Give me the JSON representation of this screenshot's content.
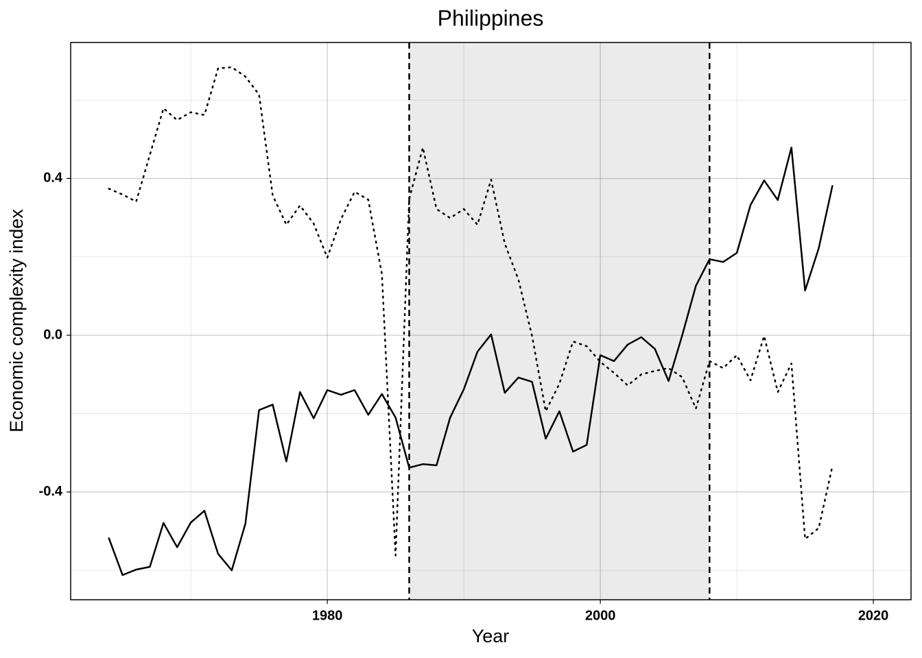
{
  "chart_data": {
    "type": "line",
    "title": "Philippines",
    "xlabel": "Year",
    "ylabel": "Economic complexity index",
    "x": [
      1964,
      1965,
      1966,
      1967,
      1968,
      1969,
      1970,
      1971,
      1972,
      1973,
      1974,
      1975,
      1976,
      1977,
      1978,
      1979,
      1980,
      1981,
      1982,
      1983,
      1984,
      1985,
      1986,
      1987,
      1988,
      1989,
      1990,
      1991,
      1992,
      1993,
      1994,
      1995,
      1996,
      1997,
      1998,
      1999,
      2000,
      2001,
      2002,
      2003,
      2004,
      2005,
      2006,
      2007,
      2008,
      2009,
      2010,
      2011,
      2012,
      2013,
      2014,
      2015,
      2016,
      2017
    ],
    "series": [
      {
        "color": "#000000",
        "style": "solid",
        "values": [
          -0.518,
          -0.612,
          -0.598,
          -0.591,
          -0.479,
          -0.541,
          -0.478,
          -0.448,
          -0.558,
          -0.6,
          -0.481,
          -0.191,
          -0.177,
          -0.322,
          -0.145,
          -0.212,
          -0.14,
          -0.152,
          -0.14,
          -0.203,
          -0.15,
          -0.21,
          -0.338,
          -0.329,
          -0.332,
          -0.21,
          -0.138,
          -0.042,
          0.002,
          -0.147,
          -0.108,
          -0.119,
          -0.264,
          -0.194,
          -0.297,
          -0.28,
          -0.051,
          -0.066,
          -0.024,
          -0.005,
          -0.035,
          -0.117,
          0.0,
          0.126,
          0.194,
          0.187,
          0.21,
          0.332,
          0.395,
          0.345,
          0.479,
          0.114,
          0.222,
          0.381
        ]
      },
      {
        "color": "#000000",
        "style": "dotted",
        "values": [
          0.374,
          0.359,
          0.341,
          0.46,
          0.579,
          0.549,
          0.569,
          0.562,
          0.681,
          0.684,
          0.66,
          0.614,
          0.357,
          0.282,
          0.331,
          0.285,
          0.198,
          0.296,
          0.366,
          0.346,
          0.156,
          -0.562,
          0.348,
          0.479,
          0.322,
          0.299,
          0.322,
          0.282,
          0.397,
          0.234,
          0.142,
          -0.002,
          -0.194,
          -0.124,
          -0.016,
          -0.028,
          -0.068,
          -0.096,
          -0.128,
          -0.1,
          -0.091,
          -0.084,
          -0.107,
          -0.187,
          -0.066,
          -0.084,
          -0.051,
          -0.115,
          -0.002,
          -0.145,
          -0.072,
          -0.52,
          -0.492,
          -0.334
        ]
      }
    ],
    "xlim": [
      1961.2,
      2022.76
    ],
    "ylim": [
      -0.675,
      0.747
    ],
    "xticks": [
      1980,
      2000,
      2020
    ],
    "yticks": [
      -0.4,
      {
        "value": 0,
        "label": "0.0"
      },
      0.4
    ],
    "xminor": [
      1970,
      1990,
      2010
    ],
    "yminor": [
      -0.6,
      -0.2,
      0.2,
      0.6
    ],
    "grid": true,
    "shaded_region": [
      1986,
      2008
    ],
    "shade_color": "#ebebeb"
  }
}
